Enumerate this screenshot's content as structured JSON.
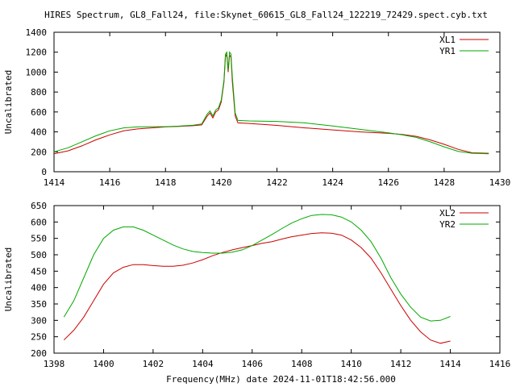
{
  "title": "HIRES Spectrum, GL8_Fall24, file:Skynet_60615_GL8_Fall24_122219_72429.spect.cyb.txt",
  "colors": {
    "red": "#cc0000",
    "green": "#00aa00",
    "axis": "#000000",
    "background": "#ffffff"
  },
  "chart_data": [
    {
      "type": "line",
      "xlabel": "",
      "ylabel": "Uncalibrated",
      "xlim": [
        1414,
        1430
      ],
      "ylim": [
        0,
        1400
      ],
      "xticks": [
        "1414",
        "1416",
        "1418",
        "1420",
        "1422",
        "1424",
        "1426",
        "1428",
        "1430"
      ],
      "yticks": [
        "0",
        "200",
        "400",
        "600",
        "800",
        "1000",
        "1200",
        "1400"
      ],
      "legend_position": "top-right",
      "series": [
        {
          "name": "XL1",
          "color": "#cc0000",
          "x": [
            1414.0,
            1414.5,
            1415.0,
            1415.5,
            1416.0,
            1416.5,
            1417.0,
            1417.5,
            1418.0,
            1418.5,
            1419.0,
            1419.3,
            1419.5,
            1419.6,
            1419.7,
            1419.8,
            1419.9,
            1420.0,
            1420.1,
            1420.15,
            1420.2,
            1420.25,
            1420.3,
            1420.35,
            1420.4,
            1420.5,
            1420.6,
            1421.0,
            1422.0,
            1423.0,
            1424.0,
            1425.0,
            1426.0,
            1426.5,
            1427.0,
            1427.5,
            1428.0,
            1428.5,
            1429.0,
            1429.6
          ],
          "y": [
            180,
            210,
            260,
            320,
            370,
            410,
            430,
            440,
            450,
            455,
            462,
            470,
            560,
            590,
            540,
            600,
            620,
            700,
            900,
            1150,
            1180,
            1000,
            1170,
            1150,
            900,
            560,
            490,
            485,
            465,
            440,
            420,
            400,
            385,
            375,
            355,
            320,
            275,
            225,
            190,
            185
          ]
        },
        {
          "name": "YR1",
          "color": "#00aa00",
          "x": [
            1414.0,
            1414.5,
            1415.0,
            1415.5,
            1416.0,
            1416.5,
            1417.0,
            1417.5,
            1418.0,
            1418.5,
            1419.0,
            1419.3,
            1419.5,
            1419.6,
            1419.7,
            1419.8,
            1419.9,
            1420.0,
            1420.1,
            1420.15,
            1420.2,
            1420.25,
            1420.3,
            1420.35,
            1420.4,
            1420.5,
            1420.6,
            1421.0,
            1422.0,
            1423.0,
            1424.0,
            1425.0,
            1426.0,
            1426.5,
            1427.0,
            1427.5,
            1428.0,
            1428.5,
            1429.0,
            1429.6
          ],
          "y": [
            200,
            240,
            300,
            360,
            410,
            440,
            450,
            452,
            452,
            458,
            468,
            480,
            580,
            610,
            560,
            620,
            640,
            720,
            920,
            1180,
            1200,
            1020,
            1200,
            1180,
            950,
            590,
            515,
            510,
            505,
            490,
            460,
            425,
            390,
            370,
            345,
            300,
            250,
            205,
            185,
            180
          ]
        }
      ]
    },
    {
      "type": "line",
      "xlabel": "Frequency(MHz) date 2024-11-01T18:42:56.000",
      "ylabel": "Uncalibrated",
      "xlim": [
        1398,
        1416
      ],
      "ylim": [
        200,
        650
      ],
      "xticks": [
        "1398",
        "1400",
        "1402",
        "1404",
        "1406",
        "1408",
        "1410",
        "1412",
        "1414",
        "1416"
      ],
      "yticks": [
        "200",
        "250",
        "300",
        "350",
        "400",
        "450",
        "500",
        "550",
        "600",
        "650"
      ],
      "legend_position": "top-right",
      "series": [
        {
          "name": "XL2",
          "color": "#cc0000",
          "x": [
            1398.4,
            1398.8,
            1399.2,
            1399.6,
            1400.0,
            1400.4,
            1400.8,
            1401.2,
            1401.6,
            1402.0,
            1402.4,
            1402.8,
            1403.2,
            1403.6,
            1404.0,
            1404.4,
            1404.8,
            1405.2,
            1405.6,
            1406.0,
            1406.4,
            1406.8,
            1407.2,
            1407.6,
            1408.0,
            1408.4,
            1408.8,
            1409.2,
            1409.6,
            1410.0,
            1410.4,
            1410.8,
            1411.2,
            1411.6,
            1412.0,
            1412.4,
            1412.8,
            1413.2,
            1413.6,
            1414.0
          ],
          "y": [
            240,
            270,
            310,
            360,
            410,
            445,
            462,
            470,
            470,
            467,
            465,
            465,
            468,
            475,
            485,
            497,
            507,
            515,
            522,
            528,
            535,
            540,
            548,
            555,
            560,
            565,
            567,
            566,
            560,
            545,
            522,
            490,
            445,
            395,
            345,
            300,
            265,
            240,
            230,
            237
          ]
        },
        {
          "name": "YR2",
          "color": "#00aa00",
          "x": [
            1398.4,
            1398.8,
            1399.2,
            1399.6,
            1400.0,
            1400.4,
            1400.8,
            1401.2,
            1401.6,
            1402.0,
            1402.4,
            1402.8,
            1403.2,
            1403.6,
            1404.0,
            1404.4,
            1404.8,
            1405.2,
            1405.6,
            1406.0,
            1406.4,
            1406.8,
            1407.2,
            1407.6,
            1408.0,
            1408.4,
            1408.8,
            1409.2,
            1409.6,
            1410.0,
            1410.4,
            1410.8,
            1411.2,
            1411.6,
            1412.0,
            1412.4,
            1412.8,
            1413.2,
            1413.6,
            1414.0
          ],
          "y": [
            310,
            360,
            430,
            500,
            550,
            575,
            585,
            585,
            575,
            560,
            545,
            530,
            518,
            510,
            507,
            505,
            505,
            508,
            515,
            528,
            545,
            562,
            580,
            597,
            610,
            620,
            623,
            622,
            615,
            600,
            575,
            540,
            490,
            430,
            380,
            340,
            310,
            298,
            300,
            312
          ]
        }
      ]
    }
  ]
}
